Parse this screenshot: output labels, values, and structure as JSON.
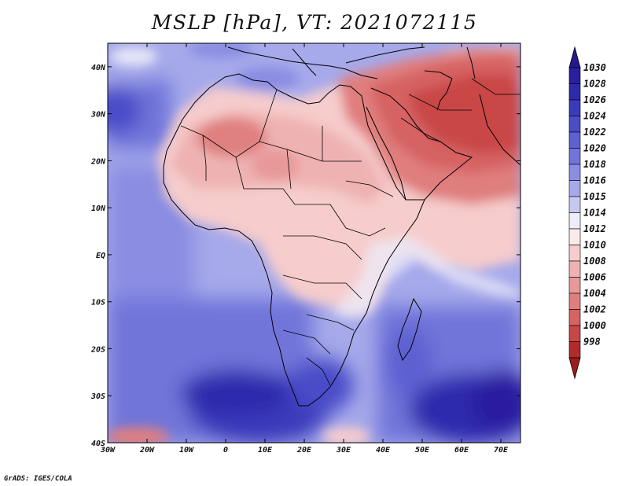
{
  "title": "MSLP [hPa], VT: 2021072115",
  "credit": "GrADS: IGES/COLA",
  "map": {
    "lon_range": [
      -30,
      75
    ],
    "lat_range": [
      -40,
      45
    ],
    "lon_ticks": [
      {
        "value": -30,
        "label": "30W"
      },
      {
        "value": -20,
        "label": "20W"
      },
      {
        "value": -10,
        "label": "10W"
      },
      {
        "value": 0,
        "label": "0"
      },
      {
        "value": 10,
        "label": "10E"
      },
      {
        "value": 20,
        "label": "20E"
      },
      {
        "value": 30,
        "label": "30E"
      },
      {
        "value": 40,
        "label": "40E"
      },
      {
        "value": 50,
        "label": "50E"
      },
      {
        "value": 60,
        "label": "60E"
      },
      {
        "value": 70,
        "label": "70E"
      }
    ],
    "lat_ticks": [
      {
        "value": 40,
        "label": "40N"
      },
      {
        "value": 30,
        "label": "30N"
      },
      {
        "value": 20,
        "label": "20N"
      },
      {
        "value": 10,
        "label": "10N"
      },
      {
        "value": 0,
        "label": "EQ"
      },
      {
        "value": -10,
        "label": "10S"
      },
      {
        "value": -20,
        "label": "20S"
      },
      {
        "value": -30,
        "label": "30S"
      },
      {
        "value": -40,
        "label": "40S"
      }
    ]
  },
  "colorbar": {
    "levels": [
      {
        "label": "1030",
        "color": "#2a1fa0"
      },
      {
        "label": "1028",
        "color": "#2e2aad"
      },
      {
        "label": "1026",
        "color": "#3a3bbb"
      },
      {
        "label": "1024",
        "color": "#4a4cc8"
      },
      {
        "label": "1022",
        "color": "#5d60d1"
      },
      {
        "label": "1020",
        "color": "#7174d9"
      },
      {
        "label": "1018",
        "color": "#8a8de2"
      },
      {
        "label": "1016",
        "color": "#a6a9ea"
      },
      {
        "label": "1015",
        "color": "#c6c8f3"
      },
      {
        "label": "1014",
        "color": "#ececfa"
      },
      {
        "label": "1012",
        "color": "#fbeaea"
      },
      {
        "label": "1010",
        "color": "#f6cccc"
      },
      {
        "label": "1008",
        "color": "#efb2b2"
      },
      {
        "label": "1006",
        "color": "#e89898"
      },
      {
        "label": "1004",
        "color": "#e07e7e"
      },
      {
        "label": "1002",
        "color": "#d66262"
      },
      {
        "label": "1000",
        "color": "#c94646"
      },
      {
        "label": "998",
        "color": "#b42a2a"
      }
    ],
    "max_arrow_color": "#231a8c",
    "min_arrow_color": "#9e1c1c"
  }
}
